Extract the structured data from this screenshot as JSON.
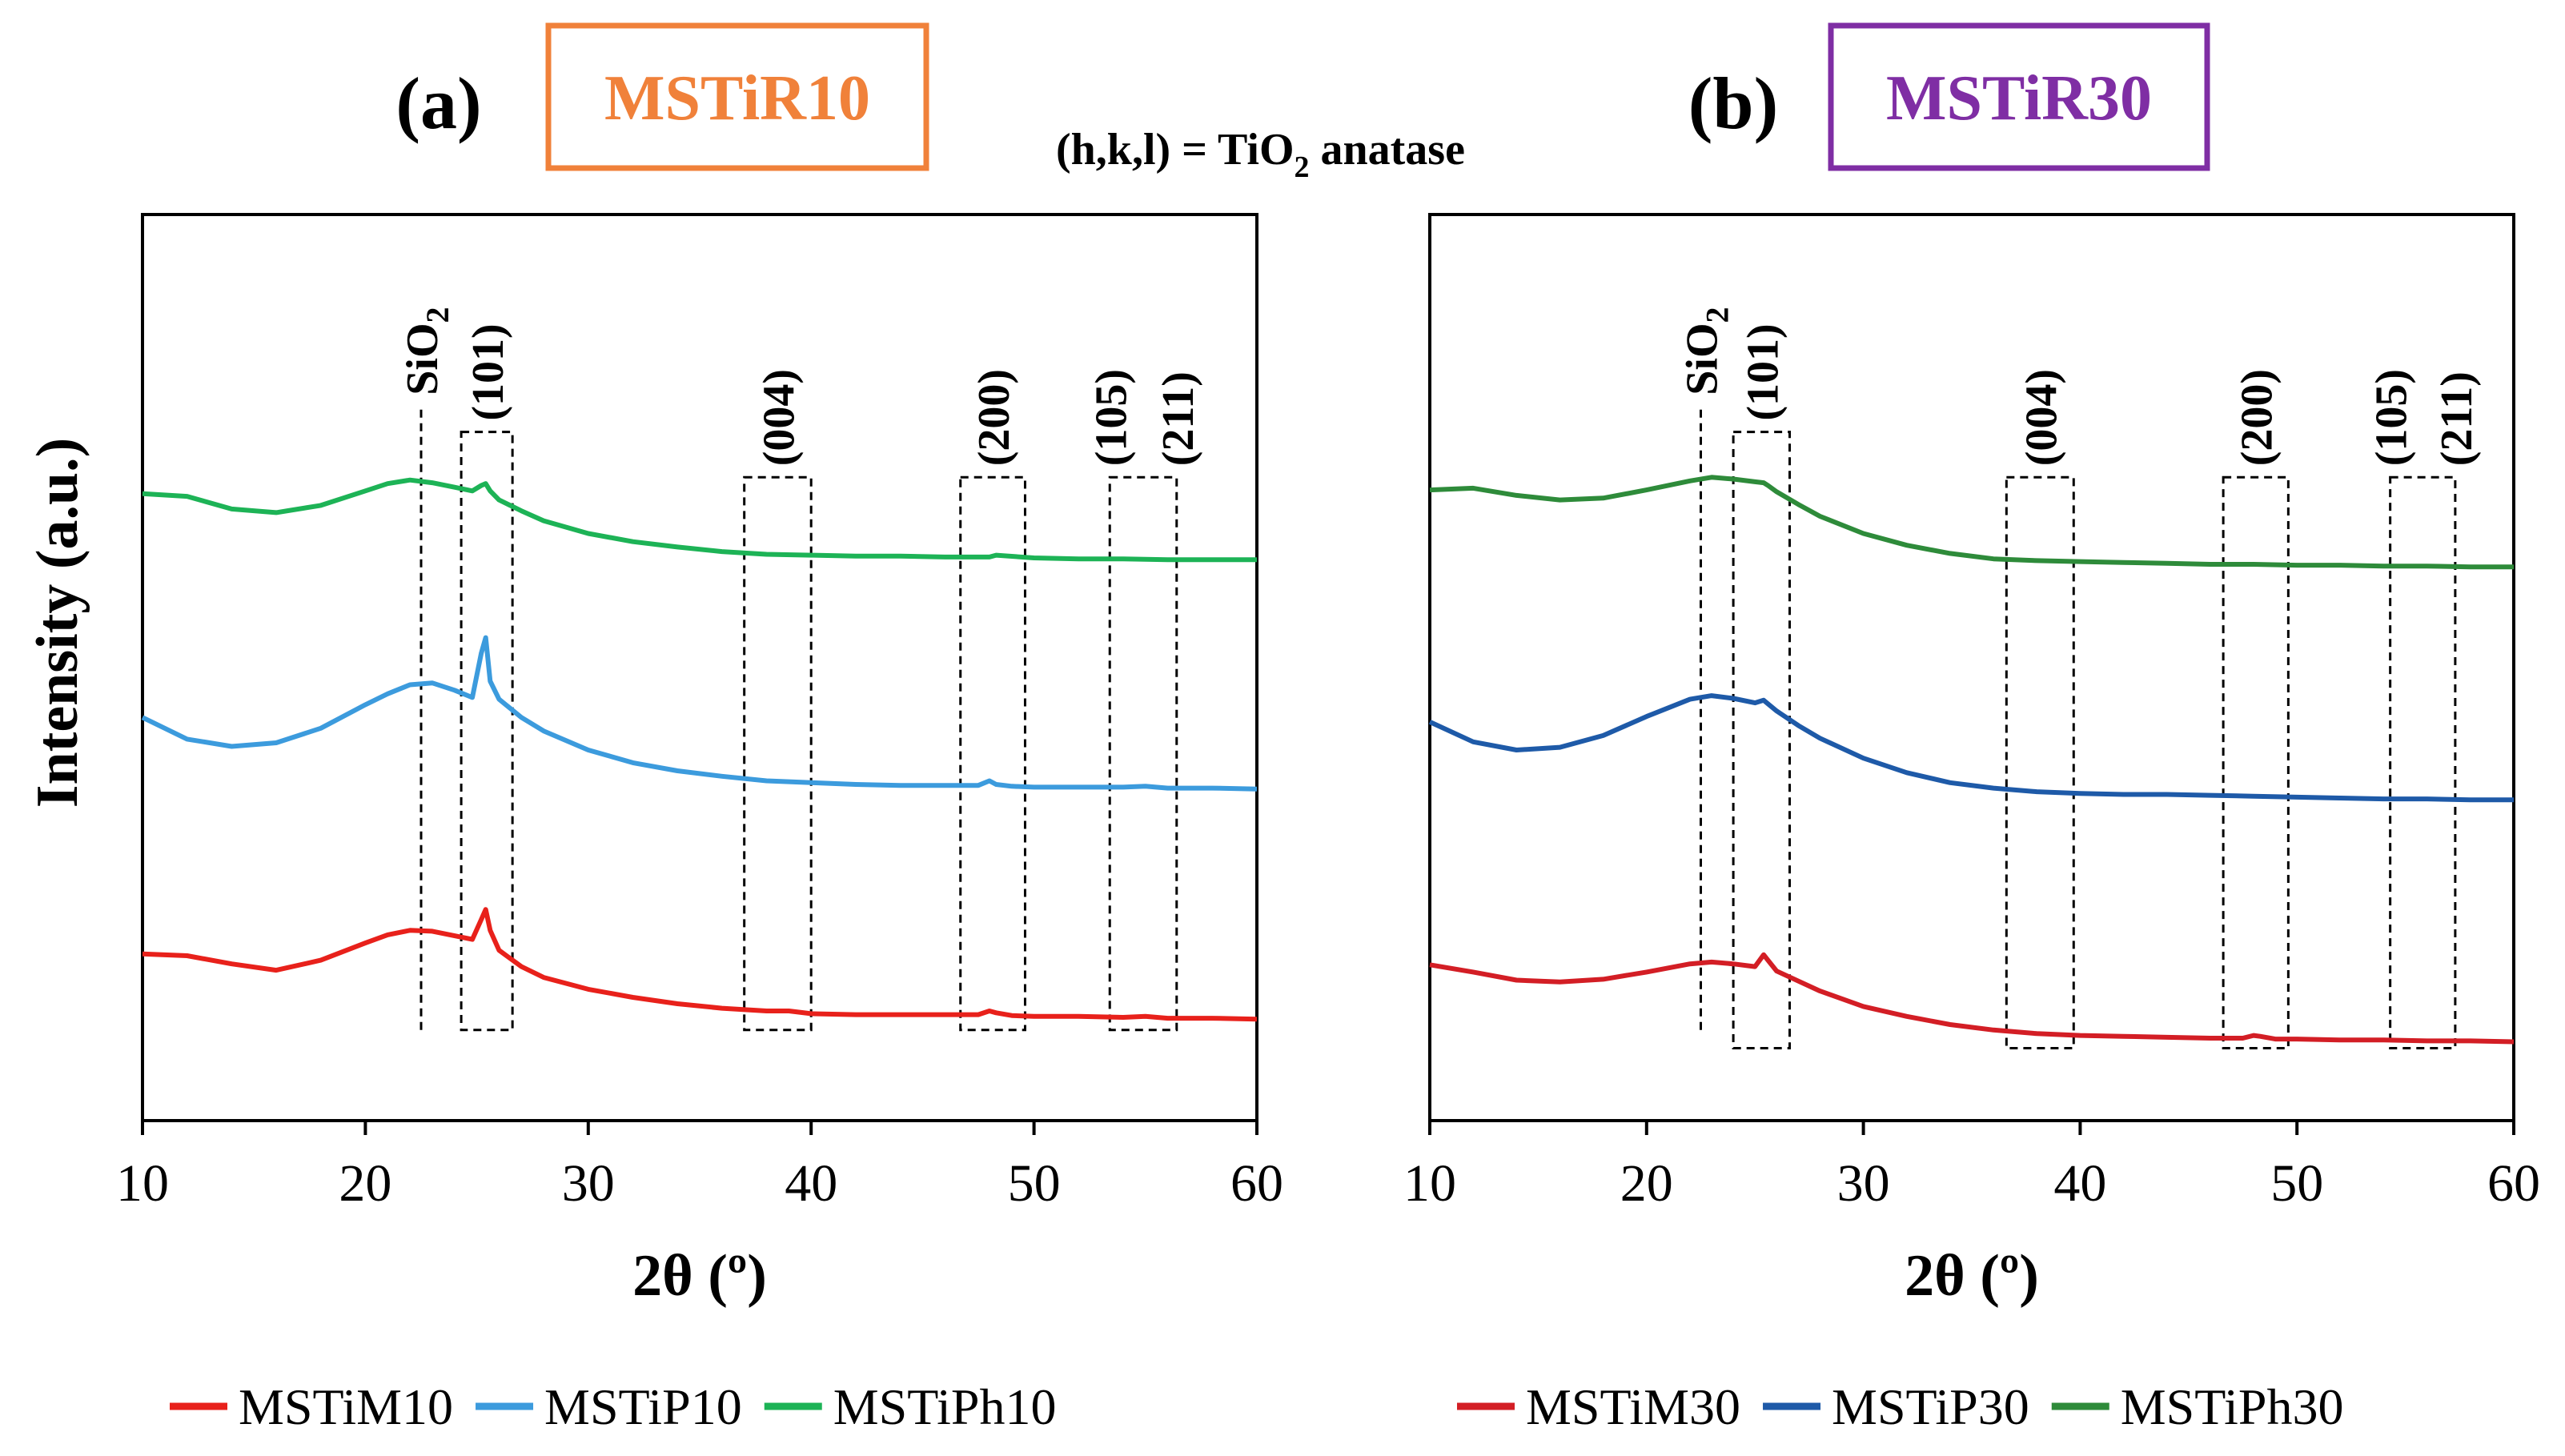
{
  "annotation_note": {
    "prefix": "(h,k,l) = TiO",
    "subscript": "2",
    "suffix": " anatase"
  },
  "chart_data": [
    {
      "type": "line",
      "panel": "(a)",
      "title": "MSTiR10",
      "title_color": "#F0813A",
      "xlabel": "2θ (º)",
      "ylabel": "Intensity (a.u.)",
      "xlim": [
        10,
        60
      ],
      "ylim": [
        0,
        100
      ],
      "xticks": [
        "10",
        "20",
        "30",
        "40",
        "50",
        "60"
      ],
      "grid": false,
      "legend_position": "bottom",
      "reference_lines": [
        {
          "label": "SiO",
          "sub": "2",
          "x": 22.5
        }
      ],
      "peak_regions": [
        {
          "label": "(101)",
          "x_range": [
            24.3,
            26.6
          ],
          "y_range": [
            10,
            76
          ]
        },
        {
          "label": "(004)",
          "x_range": [
            37.0,
            40.0
          ],
          "y_range": [
            10,
            71
          ]
        },
        {
          "label": "(200)",
          "x_range": [
            46.7,
            49.6
          ],
          "y_range": [
            10,
            71
          ]
        },
        {
          "label": "(105)",
          "x_range": [
            53.4,
            56.4
          ],
          "y_range": [
            10,
            71
          ]
        },
        {
          "label": "(211)",
          "x_range": [
            53.4,
            56.4
          ],
          "y_range": [
            10,
            71
          ]
        }
      ],
      "series": [
        {
          "name": "MSTiM10",
          "color": "#E8211B",
          "x": [
            10,
            12,
            14,
            16,
            18,
            20,
            21,
            22,
            23,
            24,
            24.8,
            25.2,
            25.4,
            25.6,
            26,
            27,
            28,
            30,
            32,
            34,
            36,
            38,
            39,
            40,
            42,
            44,
            46,
            47.5,
            48,
            48.3,
            49,
            50,
            52,
            54,
            55,
            56,
            58,
            60
          ],
          "y": [
            18.4,
            18.2,
            17.3,
            16.6,
            17.7,
            19.6,
            20.5,
            21.0,
            20.9,
            20.4,
            20.0,
            22.2,
            23.3,
            21.0,
            18.8,
            17.0,
            15.8,
            14.5,
            13.6,
            12.9,
            12.4,
            12.1,
            12.1,
            11.8,
            11.7,
            11.7,
            11.7,
            11.7,
            12.1,
            11.9,
            11.6,
            11.5,
            11.5,
            11.4,
            11.5,
            11.3,
            11.3,
            11.2
          ]
        },
        {
          "name": "MSTiP10",
          "color": "#3C9BDD",
          "x": [
            10,
            12,
            14,
            16,
            18,
            20,
            21,
            22,
            23,
            24,
            24.8,
            25.2,
            25.4,
            25.6,
            26,
            27,
            28,
            30,
            32,
            34,
            36,
            38,
            40,
            42,
            44,
            46,
            47.5,
            48,
            48.3,
            49,
            50,
            52,
            54,
            55,
            56,
            58,
            60
          ],
          "y": [
            44.5,
            42.1,
            41.3,
            41.7,
            43.3,
            45.9,
            47.1,
            48.1,
            48.3,
            47.5,
            46.7,
            51.6,
            53.3,
            48.5,
            46.5,
            44.5,
            43.0,
            40.9,
            39.5,
            38.6,
            38.0,
            37.5,
            37.3,
            37.1,
            37.0,
            37.0,
            37.0,
            37.5,
            37.1,
            36.9,
            36.8,
            36.8,
            36.8,
            36.9,
            36.7,
            36.7,
            36.6
          ]
        },
        {
          "name": "MSTiPh10",
          "color": "#1DB356",
          "x": [
            10,
            12,
            14,
            16,
            18,
            20,
            21,
            22,
            23,
            24,
            24.8,
            25.2,
            25.4,
            25.6,
            26,
            27,
            28,
            30,
            32,
            34,
            36,
            38,
            40,
            42,
            44,
            46,
            48,
            48.3,
            50,
            52,
            54,
            56,
            58,
            60
          ],
          "y": [
            69.2,
            68.9,
            67.5,
            67.1,
            67.9,
            69.5,
            70.3,
            70.7,
            70.4,
            69.9,
            69.5,
            70.1,
            70.3,
            69.5,
            68.5,
            67.3,
            66.2,
            64.8,
            63.9,
            63.3,
            62.8,
            62.5,
            62.4,
            62.3,
            62.3,
            62.2,
            62.2,
            62.4,
            62.1,
            62.0,
            62.0,
            61.9,
            61.9,
            61.9
          ]
        }
      ]
    },
    {
      "type": "line",
      "panel": "(b)",
      "title": "MSTiR30",
      "title_color": "#7F2EA4",
      "xlabel": "2θ (º)",
      "ylabel": "",
      "xlim": [
        10,
        60
      ],
      "ylim": [
        0,
        100
      ],
      "xticks": [
        "10",
        "20",
        "30",
        "40",
        "50",
        "60"
      ],
      "grid": false,
      "legend_position": "bottom",
      "reference_lines": [
        {
          "label": "SiO",
          "sub": "2",
          "x": 22.5
        }
      ],
      "peak_regions": [
        {
          "label": "(101)",
          "x_range": [
            24.0,
            26.6
          ],
          "y_range": [
            8,
            76
          ]
        },
        {
          "label": "(004)",
          "x_range": [
            36.6,
            39.7
          ],
          "y_range": [
            8,
            71
          ]
        },
        {
          "label": "(200)",
          "x_range": [
            46.6,
            49.6
          ],
          "y_range": [
            8,
            71
          ]
        },
        {
          "label": "(105)",
          "x_range": [
            54.3,
            57.3
          ],
          "y_range": [
            8,
            71
          ]
        },
        {
          "label": "(211)",
          "x_range": [
            54.3,
            57.3
          ],
          "y_range": [
            8,
            71
          ]
        }
      ],
      "series": [
        {
          "name": "MSTiM30",
          "color": "#D31E25",
          "x": [
            10,
            12,
            14,
            16,
            18,
            20,
            22,
            23,
            24,
            25,
            25.4,
            25.6,
            26,
            27,
            28,
            30,
            32,
            34,
            36,
            38,
            40,
            42,
            44,
            46,
            47.5,
            48,
            48.3,
            49,
            50,
            52,
            54,
            56,
            58,
            60
          ],
          "y": [
            17.2,
            16.4,
            15.5,
            15.3,
            15.6,
            16.4,
            17.3,
            17.5,
            17.3,
            17.0,
            18.3,
            17.7,
            16.5,
            15.4,
            14.3,
            12.6,
            11.5,
            10.6,
            10.0,
            9.6,
            9.4,
            9.3,
            9.2,
            9.1,
            9.1,
            9.4,
            9.3,
            9.0,
            9.0,
            8.9,
            8.9,
            8.8,
            8.8,
            8.7
          ]
        },
        {
          "name": "MSTiP30",
          "color": "#1E5AA8",
          "x": [
            10,
            12,
            14,
            16,
            18,
            20,
            22,
            23,
            24,
            25,
            25.4,
            25.6,
            26,
            27,
            28,
            30,
            32,
            34,
            36,
            38,
            40,
            42,
            44,
            46,
            48,
            50,
            52,
            54,
            56,
            58,
            60
          ],
          "y": [
            44.0,
            41.8,
            40.9,
            41.2,
            42.5,
            44.6,
            46.5,
            46.9,
            46.6,
            46.1,
            46.4,
            46.0,
            45.2,
            43.6,
            42.2,
            40.0,
            38.4,
            37.3,
            36.7,
            36.3,
            36.1,
            36.0,
            36.0,
            35.9,
            35.8,
            35.7,
            35.6,
            35.5,
            35.5,
            35.4,
            35.4
          ]
        },
        {
          "name": "MSTiPh30",
          "color": "#2E8B3A",
          "x": [
            10,
            12,
            14,
            16,
            18,
            20,
            22,
            23,
            24,
            25,
            25.4,
            25.6,
            26,
            27,
            28,
            30,
            32,
            34,
            36,
            38,
            40,
            42,
            44,
            46,
            48,
            50,
            52,
            54,
            56,
            58,
            60
          ],
          "y": [
            69.6,
            69.8,
            69.0,
            68.5,
            68.7,
            69.6,
            70.6,
            71.0,
            70.8,
            70.5,
            70.4,
            70.1,
            69.4,
            68.0,
            66.7,
            64.8,
            63.5,
            62.6,
            62.0,
            61.8,
            61.7,
            61.6,
            61.5,
            61.4,
            61.4,
            61.3,
            61.3,
            61.2,
            61.2,
            61.1,
            61.1
          ]
        }
      ]
    }
  ]
}
